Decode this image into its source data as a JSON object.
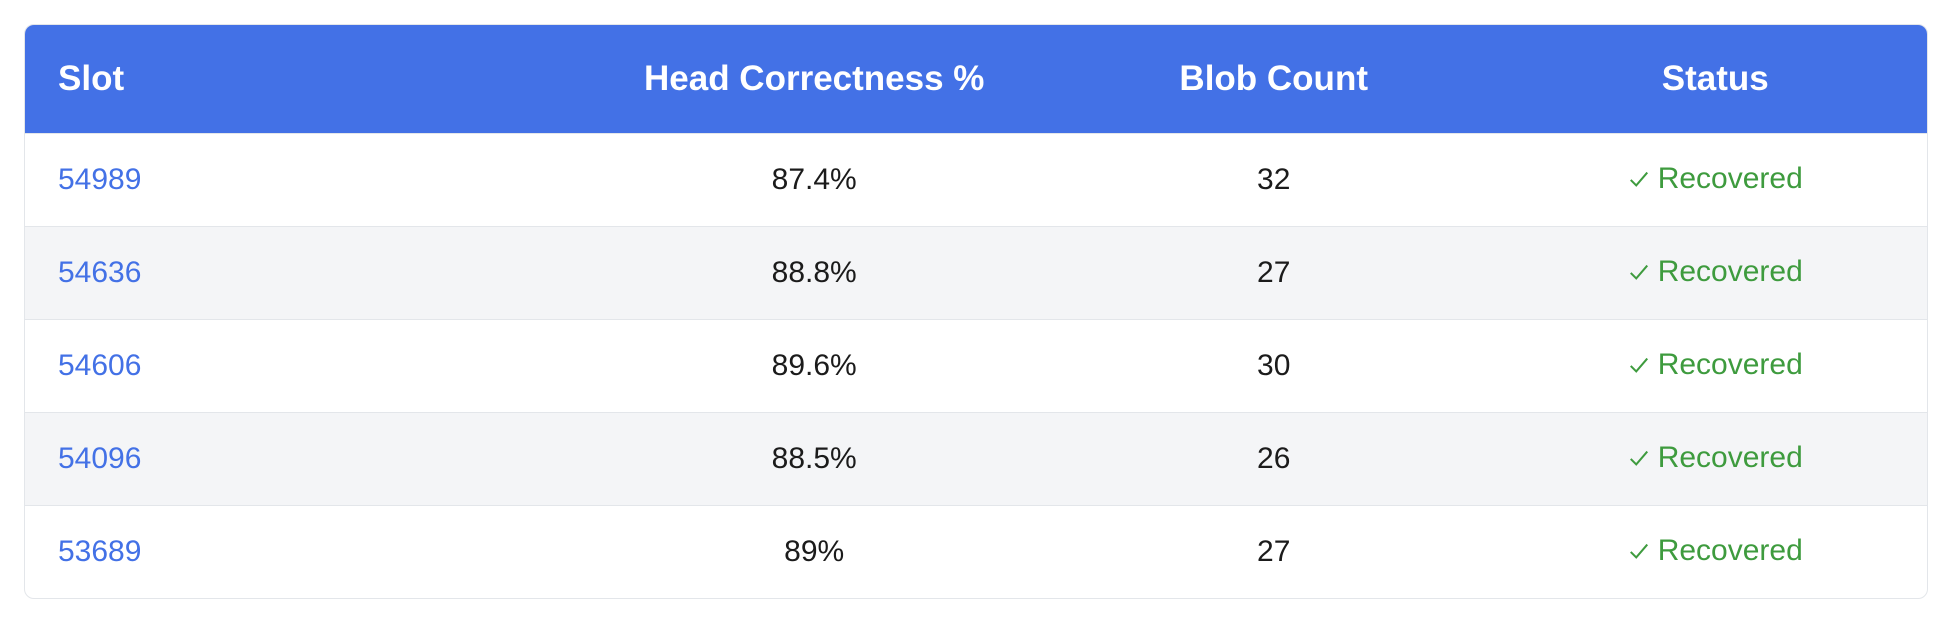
{
  "table": {
    "headers": {
      "slot": "Slot",
      "head_correctness": "Head Correctness %",
      "blob_count": "Blob Count",
      "status": "Status"
    },
    "rows": [
      {
        "slot": "54989",
        "head_correctness": "87.4%",
        "blob_count": "32",
        "status": "Recovered"
      },
      {
        "slot": "54636",
        "head_correctness": "88.8%",
        "blob_count": "27",
        "status": "Recovered"
      },
      {
        "slot": "54606",
        "head_correctness": "89.6%",
        "blob_count": "30",
        "status": "Recovered"
      },
      {
        "slot": "54096",
        "head_correctness": "88.5%",
        "blob_count": "26",
        "status": "Recovered"
      },
      {
        "slot": "53689",
        "head_correctness": "89%",
        "blob_count": "27",
        "status": "Recovered"
      }
    ]
  },
  "icons": {
    "status": "check-icon"
  },
  "colors": {
    "header_bg": "#4371e6",
    "link": "#4371e6",
    "status_ok": "#3e9b3e",
    "alt_row_bg": "#f4f5f7"
  }
}
